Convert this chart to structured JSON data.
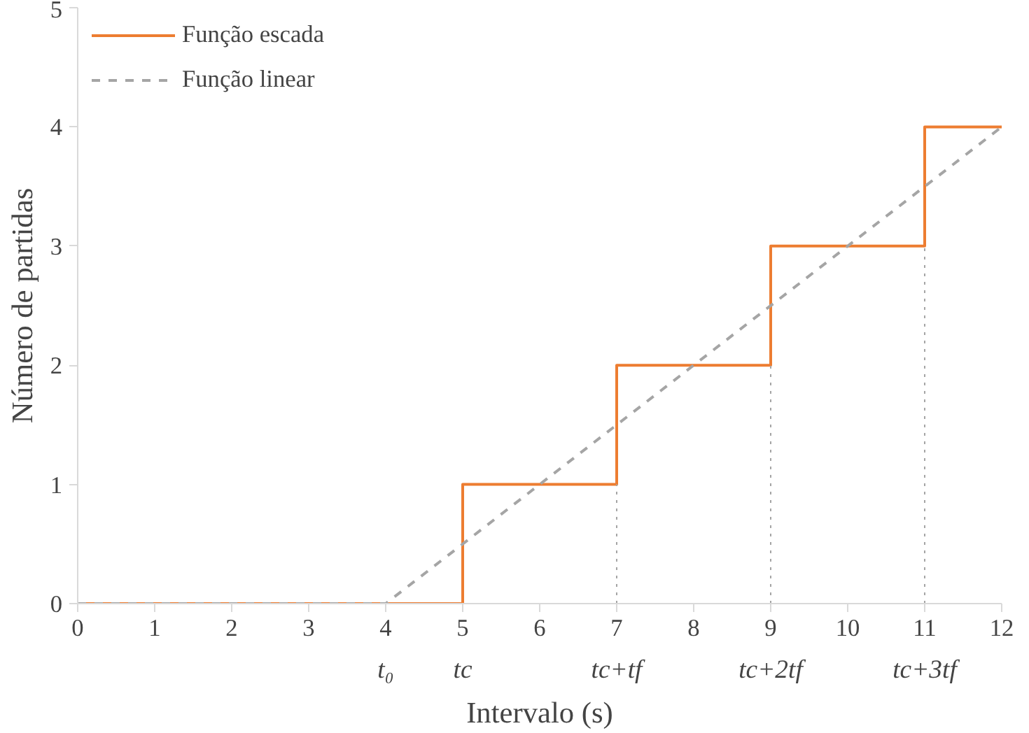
{
  "chart_data": {
    "type": "step",
    "xlabel": "Intervalo (s)",
    "ylabel": "Número de partidas",
    "xlim": [
      0,
      12
    ],
    "xticks": [
      0,
      1,
      2,
      3,
      4,
      5,
      6,
      7,
      8,
      9,
      10,
      11,
      12
    ],
    "ylim": [
      0,
      5
    ],
    "yticks": [
      0,
      1,
      2,
      3,
      4,
      5
    ],
    "series": [
      {
        "name": "Função escada",
        "type": "step",
        "color": "#ed7d31",
        "line_style": "solid",
        "x": [
          0,
          5,
          7,
          9,
          11,
          12
        ],
        "values": [
          0,
          1,
          2,
          3,
          4,
          4
        ]
      },
      {
        "name": "Função linear",
        "type": "line",
        "color": "#a5a5a5",
        "line_style": "dashed",
        "x": [
          0,
          4,
          12
        ],
        "values": [
          0,
          0,
          4
        ]
      }
    ],
    "annotations": [
      {
        "text": "t₀",
        "x": 4,
        "y": 0
      },
      {
        "text": "tc",
        "x": 5,
        "y": 0
      }
    ],
    "ref_lines": [
      {
        "axis": "x",
        "value": 7,
        "label": "tc+tf",
        "color": "#a5a5a5",
        "line_style": "dotted"
      },
      {
        "axis": "x",
        "value": 9,
        "label": "tc+2tf",
        "color": "#a5a5a5",
        "line_style": "dotted"
      },
      {
        "axis": "x",
        "value": 11,
        "label": "tc+3tf",
        "color": "#a5a5a5",
        "line_style": "dotted"
      }
    ],
    "grid": false,
    "legend": "top left"
  }
}
